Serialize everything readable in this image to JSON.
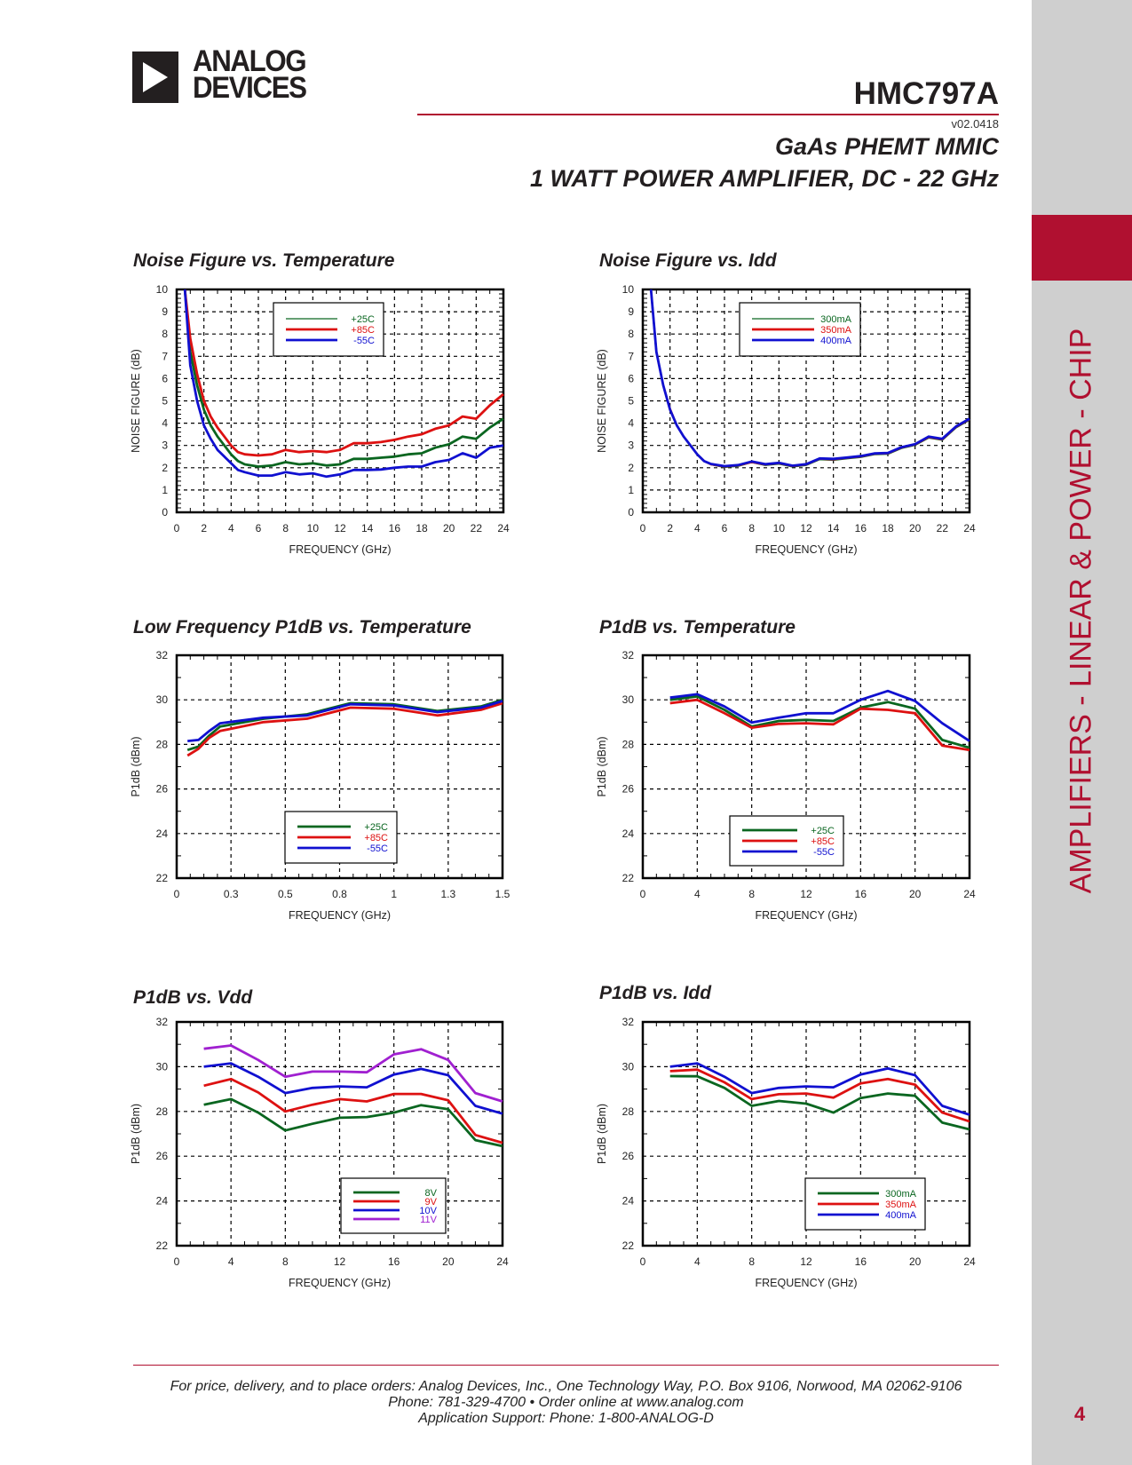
{
  "header": {
    "logo_line1": "ANALOG",
    "logo_line2": "DEVICES",
    "part_number": "HMC797A",
    "version": "v02.0418",
    "subtitle_line1": "GaAs PHEMT MMIC",
    "subtitle_line2": "1 WATT POWER AMPLIFIER, DC - 22 GHz"
  },
  "sidebar": {
    "category": "AMPLIFIERS - LINEAR & POWER - CHIP",
    "page_number": "4"
  },
  "colors": {
    "brand_red": "#b01030",
    "sidebar_gray": "#cfcfcf",
    "series_green": "#0a6620",
    "series_red": "#dd1111",
    "series_blue": "#1010d0",
    "series_purple": "#a020d0"
  },
  "footer": {
    "line1": "For price, delivery, and to place orders: Analog Devices, Inc., One Technology Way, P.O. Box 9106, Norwood, MA 02062-9106",
    "line2": "Phone: 781-329-4700 • Order online at www.analog.com",
    "line3": "Application Support: Phone: 1-800-ANALOG-D"
  },
  "chart_data": [
    {
      "id": "nf-vs-temp",
      "type": "line",
      "title": "Noise Figure vs. Temperature",
      "xlabel": "FREQUENCY (GHz)",
      "ylabel": "NOISE FIGURE (dB)",
      "xlim": [
        0,
        24
      ],
      "ylim": [
        0,
        10
      ],
      "xticks": [
        0,
        2,
        4,
        6,
        8,
        10,
        12,
        14,
        16,
        18,
        20,
        22,
        24
      ],
      "xtick_labels": [
        "0",
        "2",
        "4",
        "6",
        "8",
        "10",
        "12",
        "14",
        "16",
        "18",
        "20",
        "22",
        "24"
      ],
      "yticks": [
        0,
        1,
        2,
        3,
        4,
        5,
        6,
        7,
        8,
        9,
        10
      ],
      "ytick_labels": [
        "0",
        "1",
        "2",
        "3",
        "4",
        "5",
        "6",
        "7",
        "8",
        "9",
        "10"
      ],
      "grid": true,
      "legend_position": "top-center",
      "series": [
        {
          "name": "+25C",
          "color": "#0a6620",
          "x": [
            0.6,
            1,
            1.5,
            2,
            2.5,
            3,
            3.5,
            4,
            4.5,
            5,
            6,
            7,
            8,
            9,
            10,
            11,
            12,
            13,
            14,
            15,
            16,
            17,
            18,
            19,
            20,
            21,
            22,
            23,
            24
          ],
          "y": [
            10,
            7.2,
            5.7,
            4.6,
            3.9,
            3.4,
            3.0,
            2.6,
            2.3,
            2.15,
            2.05,
            2.1,
            2.25,
            2.15,
            2.2,
            2.1,
            2.15,
            2.4,
            2.4,
            2.45,
            2.5,
            2.6,
            2.65,
            2.9,
            3.05,
            3.4,
            3.3,
            3.8,
            4.2
          ]
        },
        {
          "name": "+85C",
          "color": "#dd1111",
          "x": [
            0.6,
            1,
            1.5,
            2,
            2.5,
            3,
            3.5,
            4,
            4.5,
            5,
            6,
            7,
            8,
            9,
            10,
            11,
            12,
            13,
            14,
            15,
            16,
            17,
            18,
            19,
            20,
            21,
            22,
            23,
            24
          ],
          "y": [
            10,
            7.8,
            6.2,
            5.0,
            4.3,
            3.8,
            3.4,
            3.0,
            2.7,
            2.6,
            2.55,
            2.6,
            2.8,
            2.7,
            2.75,
            2.7,
            2.8,
            3.1,
            3.1,
            3.15,
            3.25,
            3.4,
            3.5,
            3.75,
            3.9,
            4.3,
            4.2,
            4.8,
            5.3
          ]
        },
        {
          "name": "-55C",
          "color": "#1010d0",
          "x": [
            0.6,
            1,
            1.5,
            2,
            2.5,
            3,
            3.5,
            4,
            4.5,
            5,
            6,
            7,
            8,
            9,
            10,
            11,
            12,
            13,
            14,
            15,
            16,
            17,
            18,
            19,
            20,
            21,
            22,
            23,
            24
          ],
          "y": [
            10,
            6.6,
            5.0,
            3.9,
            3.3,
            2.8,
            2.5,
            2.2,
            1.9,
            1.8,
            1.65,
            1.65,
            1.8,
            1.7,
            1.75,
            1.6,
            1.7,
            1.9,
            1.9,
            1.92,
            2.0,
            2.05,
            2.05,
            2.25,
            2.35,
            2.65,
            2.45,
            2.9,
            3.0
          ]
        }
      ]
    },
    {
      "id": "nf-vs-idd",
      "type": "line",
      "title": "Noise Figure vs. Idd",
      "xlabel": "FREQUENCY (GHz)",
      "ylabel": "NOISE FIGURE (dB)",
      "xlim": [
        0,
        24
      ],
      "ylim": [
        0,
        10
      ],
      "xticks": [
        0,
        2,
        4,
        6,
        8,
        10,
        12,
        14,
        16,
        18,
        20,
        22,
        24
      ],
      "xtick_labels": [
        "0",
        "2",
        "4",
        "6",
        "8",
        "10",
        "12",
        "14",
        "16",
        "18",
        "20",
        "22",
        "24"
      ],
      "yticks": [
        0,
        1,
        2,
        3,
        4,
        5,
        6,
        7,
        8,
        9,
        10
      ],
      "ytick_labels": [
        "0",
        "1",
        "2",
        "3",
        "4",
        "5",
        "6",
        "7",
        "8",
        "9",
        "10"
      ],
      "grid": true,
      "legend_position": "top-center",
      "series": [
        {
          "name": "300mA",
          "color": "#0a6620",
          "x": [
            0.6,
            1,
            1.5,
            2,
            2.5,
            3,
            3.5,
            4,
            4.5,
            5,
            6,
            7,
            8,
            9,
            10,
            11,
            12,
            13,
            14,
            15,
            16,
            17,
            18,
            19,
            20,
            21,
            22,
            23,
            24
          ],
          "y": [
            10,
            7.2,
            5.7,
            4.6,
            3.9,
            3.4,
            3.0,
            2.6,
            2.3,
            2.15,
            2.03,
            2.08,
            2.25,
            2.12,
            2.18,
            2.05,
            2.12,
            2.38,
            2.35,
            2.42,
            2.48,
            2.6,
            2.62,
            2.88,
            3.02,
            3.35,
            3.25,
            3.8,
            4.15
          ]
        },
        {
          "name": "350mA",
          "color": "#dd1111",
          "x": [
            0.6,
            1,
            1.5,
            2,
            2.5,
            3,
            3.5,
            4,
            4.5,
            5,
            6,
            7,
            8,
            9,
            10,
            11,
            12,
            13,
            14,
            15,
            16,
            17,
            18,
            19,
            20,
            21,
            22,
            23,
            24
          ],
          "y": [
            10,
            7.2,
            5.7,
            4.65,
            3.9,
            3.4,
            3.0,
            2.6,
            2.3,
            2.15,
            2.05,
            2.1,
            2.25,
            2.14,
            2.2,
            2.07,
            2.14,
            2.4,
            2.37,
            2.44,
            2.5,
            2.62,
            2.64,
            2.9,
            3.04,
            3.37,
            3.27,
            3.82,
            4.17
          ]
        },
        {
          "name": "400mA",
          "color": "#1010d0",
          "x": [
            0.6,
            1,
            1.5,
            2,
            2.5,
            3,
            3.5,
            4,
            4.5,
            5,
            6,
            7,
            8,
            9,
            10,
            11,
            12,
            13,
            14,
            15,
            16,
            17,
            18,
            19,
            20,
            21,
            22,
            23,
            24
          ],
          "y": [
            10,
            7.2,
            5.7,
            4.6,
            3.9,
            3.4,
            3.0,
            2.6,
            2.3,
            2.17,
            2.07,
            2.12,
            2.28,
            2.16,
            2.22,
            2.09,
            2.16,
            2.42,
            2.4,
            2.46,
            2.52,
            2.64,
            2.66,
            2.92,
            3.06,
            3.4,
            3.3,
            3.85,
            4.2
          ]
        }
      ]
    },
    {
      "id": "lf-p1db-vs-temp",
      "type": "line",
      "title": "Low Frequency P1dB vs. Temperature",
      "xlabel": "FREQUENCY (GHz)",
      "ylabel": "P1dB (dBm)",
      "xlim": [
        0,
        1.5
      ],
      "ylim": [
        22,
        32
      ],
      "xticks": [
        0,
        0.25,
        0.5,
        0.75,
        1.0,
        1.25,
        1.5
      ],
      "xtick_labels": [
        "0",
        "0.3",
        "0.5",
        "0.8",
        "1",
        "1.3",
        "1.5"
      ],
      "yticks": [
        22,
        24,
        26,
        28,
        30,
        32
      ],
      "ytick_labels": [
        "22",
        "24",
        "26",
        "28",
        "30",
        "32"
      ],
      "grid": true,
      "legend_position": "bottom-center",
      "series": [
        {
          "name": "+25C",
          "color": "#0a6620",
          "x": [
            0.05,
            0.1,
            0.15,
            0.2,
            0.4,
            0.6,
            0.8,
            1.0,
            1.2,
            1.4,
            1.5
          ],
          "y": [
            27.75,
            27.9,
            28.4,
            28.8,
            29.15,
            29.35,
            29.85,
            29.8,
            29.5,
            29.7,
            30.0
          ]
        },
        {
          "name": "+85C",
          "color": "#dd1111",
          "x": [
            0.05,
            0.1,
            0.15,
            0.2,
            0.4,
            0.6,
            0.8,
            1.0,
            1.2,
            1.4,
            1.5
          ],
          "y": [
            27.5,
            27.8,
            28.3,
            28.6,
            29.0,
            29.15,
            29.65,
            29.6,
            29.3,
            29.55,
            29.85
          ]
        },
        {
          "name": "-55C",
          "color": "#1010d0",
          "x": [
            0.05,
            0.1,
            0.15,
            0.2,
            0.4,
            0.6,
            0.8,
            1.0,
            1.2,
            1.4,
            1.5
          ],
          "y": [
            28.15,
            28.2,
            28.6,
            28.95,
            29.2,
            29.3,
            29.8,
            29.75,
            29.45,
            29.65,
            29.95
          ]
        }
      ]
    },
    {
      "id": "p1db-vs-temp",
      "type": "line",
      "title": "P1dB vs. Temperature",
      "xlabel": "FREQUENCY (GHz)",
      "ylabel": "P1dB (dBm)",
      "xlim": [
        0,
        24
      ],
      "ylim": [
        22,
        32
      ],
      "xticks": [
        0,
        4,
        8,
        12,
        16,
        20,
        24
      ],
      "xtick_labels": [
        "0",
        "4",
        "8",
        "12",
        "16",
        "20",
        "24"
      ],
      "yticks": [
        22,
        24,
        26,
        28,
        30,
        32
      ],
      "ytick_labels": [
        "22",
        "24",
        "26",
        "28",
        "30",
        "32"
      ],
      "grid": true,
      "legend_position": "bottom-center",
      "series": [
        {
          "name": "+25C",
          "color": "#0a6620",
          "x": [
            2,
            4,
            6,
            8,
            10,
            12,
            14,
            16,
            18,
            20,
            22,
            24
          ],
          "y": [
            30.0,
            30.15,
            29.55,
            28.8,
            29.05,
            29.1,
            29.05,
            29.65,
            29.9,
            29.6,
            28.2,
            27.85
          ]
        },
        {
          "name": "+85C",
          "color": "#dd1111",
          "x": [
            2,
            4,
            6,
            8,
            10,
            12,
            14,
            16,
            18,
            20,
            22,
            24
          ],
          "y": [
            29.85,
            30.0,
            29.4,
            28.75,
            28.92,
            28.95,
            28.9,
            29.6,
            29.55,
            29.4,
            27.95,
            27.75
          ]
        },
        {
          "name": "-55C",
          "color": "#1010d0",
          "x": [
            2,
            4,
            6,
            8,
            10,
            12,
            14,
            16,
            18,
            20,
            22,
            24
          ],
          "y": [
            30.1,
            30.25,
            29.7,
            28.98,
            29.2,
            29.4,
            29.4,
            30.0,
            30.4,
            29.95,
            28.95,
            28.15
          ]
        }
      ]
    },
    {
      "id": "p1db-vs-vdd",
      "type": "line",
      "title": "P1dB vs. Vdd",
      "xlabel": "FREQUENCY (GHz)",
      "ylabel": "P1dB (dBm)",
      "xlim": [
        0,
        24
      ],
      "ylim": [
        22,
        32
      ],
      "xticks": [
        0,
        4,
        8,
        12,
        16,
        20,
        24
      ],
      "xtick_labels": [
        "0",
        "4",
        "8",
        "12",
        "16",
        "20",
        "24"
      ],
      "yticks": [
        22,
        24,
        26,
        28,
        30,
        32
      ],
      "ytick_labels": [
        "22",
        "24",
        "26",
        "28",
        "30",
        "32"
      ],
      "grid": true,
      "legend_position": "bottom-right",
      "series": [
        {
          "name": "8V",
          "color": "#0a6620",
          "x": [
            2,
            4,
            6,
            8,
            10,
            12,
            14,
            16,
            18,
            20,
            22,
            24
          ],
          "y": [
            28.3,
            28.55,
            27.95,
            27.15,
            27.45,
            27.72,
            27.75,
            27.95,
            28.28,
            28.1,
            26.72,
            26.45
          ]
        },
        {
          "name": "9V",
          "color": "#dd1111",
          "x": [
            2,
            4,
            6,
            8,
            10,
            12,
            14,
            16,
            18,
            20,
            22,
            24
          ],
          "y": [
            29.15,
            29.45,
            28.85,
            28.0,
            28.3,
            28.55,
            28.45,
            28.78,
            28.78,
            28.5,
            26.95,
            26.6
          ]
        },
        {
          "name": "10V",
          "color": "#1010d0",
          "x": [
            2,
            4,
            6,
            8,
            10,
            12,
            14,
            16,
            18,
            20,
            22,
            24
          ],
          "y": [
            30.0,
            30.15,
            29.55,
            28.82,
            29.05,
            29.12,
            29.08,
            29.65,
            29.9,
            29.62,
            28.25,
            27.9
          ]
        },
        {
          "name": "11V",
          "color": "#a020d0",
          "x": [
            2,
            4,
            6,
            8,
            10,
            12,
            14,
            16,
            18,
            20,
            22,
            24
          ],
          "y": [
            30.8,
            30.95,
            30.3,
            29.55,
            29.78,
            29.78,
            29.75,
            30.55,
            30.78,
            30.3,
            28.82,
            28.45
          ]
        }
      ]
    },
    {
      "id": "p1db-vs-idd",
      "type": "line",
      "title": "P1dB vs. Idd",
      "xlabel": "FREQUENCY (GHz)",
      "ylabel": "P1dB (dBm)",
      "xlim": [
        0,
        24
      ],
      "ylim": [
        22,
        32
      ],
      "xticks": [
        0,
        4,
        8,
        12,
        16,
        20,
        24
      ],
      "xtick_labels": [
        "0",
        "4",
        "8",
        "12",
        "16",
        "20",
        "24"
      ],
      "yticks": [
        22,
        24,
        26,
        28,
        30,
        32
      ],
      "ytick_labels": [
        "22",
        "24",
        "26",
        "28",
        "30",
        "32"
      ],
      "grid": true,
      "legend_position": "bottom-right",
      "series": [
        {
          "name": "300mA",
          "color": "#0a6620",
          "x": [
            2,
            4,
            6,
            8,
            10,
            12,
            14,
            16,
            18,
            20,
            22,
            24
          ],
          "y": [
            29.58,
            29.57,
            29.05,
            28.25,
            28.47,
            28.35,
            27.95,
            28.6,
            28.8,
            28.7,
            27.5,
            27.2
          ]
        },
        {
          "name": "350mA",
          "color": "#dd1111",
          "x": [
            2,
            4,
            6,
            8,
            10,
            12,
            14,
            16,
            18,
            20,
            22,
            24
          ],
          "y": [
            29.8,
            29.87,
            29.3,
            28.55,
            28.77,
            28.8,
            28.62,
            29.25,
            29.45,
            29.2,
            27.95,
            27.55
          ]
        },
        {
          "name": "400mA",
          "color": "#1010d0",
          "x": [
            2,
            4,
            6,
            8,
            10,
            12,
            14,
            16,
            18,
            20,
            22,
            24
          ],
          "y": [
            30.0,
            30.15,
            29.55,
            28.82,
            29.05,
            29.12,
            29.08,
            29.65,
            29.92,
            29.62,
            28.25,
            27.85
          ]
        }
      ]
    }
  ]
}
